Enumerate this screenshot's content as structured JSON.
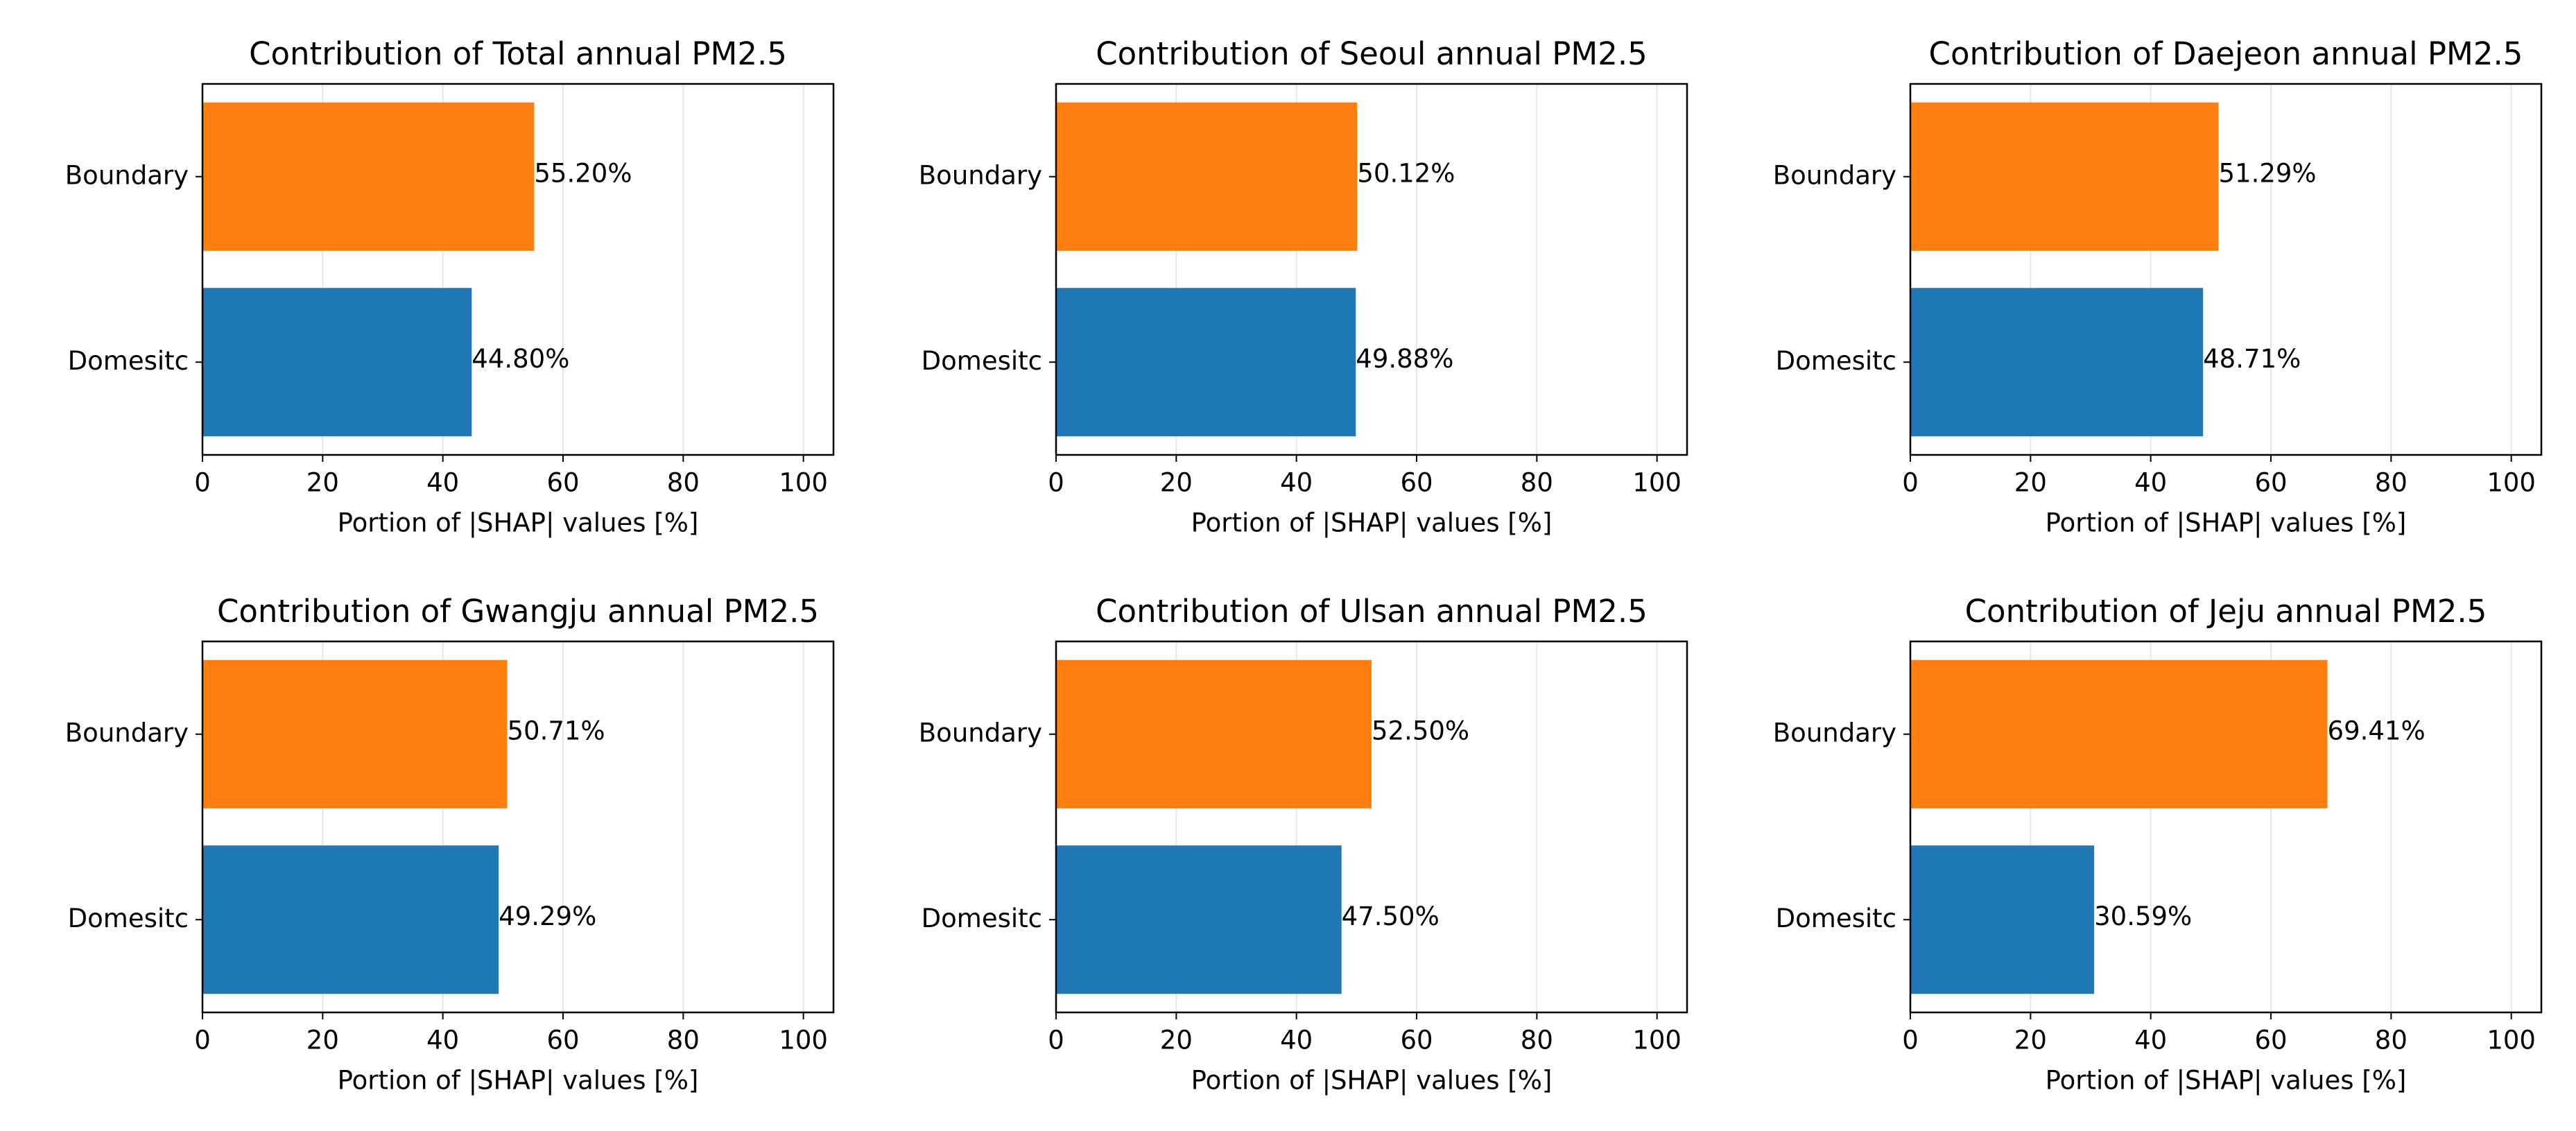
{
  "chart_data": [
    {
      "type": "barh",
      "title": "Contribution of Total annual PM2.5",
      "xlabel": "Portion of |SHAP| values [%]",
      "categories": [
        "Boundary",
        "Domesitc"
      ],
      "values": [
        55.2,
        44.8
      ],
      "value_labels": [
        "55.20%",
        "44.80%"
      ],
      "colors": [
        "#ff7f0e",
        "#1f77b4"
      ],
      "xlim": [
        0,
        105
      ],
      "xticks": [
        0,
        20,
        40,
        60,
        80,
        100
      ],
      "grid": true
    },
    {
      "type": "barh",
      "title": "Contribution of Seoul annual PM2.5",
      "xlabel": "Portion of |SHAP| values [%]",
      "categories": [
        "Boundary",
        "Domesitc"
      ],
      "values": [
        50.12,
        49.88
      ],
      "value_labels": [
        "50.12%",
        "49.88%"
      ],
      "colors": [
        "#ff7f0e",
        "#1f77b4"
      ],
      "xlim": [
        0,
        105
      ],
      "xticks": [
        0,
        20,
        40,
        60,
        80,
        100
      ],
      "grid": true
    },
    {
      "type": "barh",
      "title": "Contribution of Daejeon annual PM2.5",
      "xlabel": "Portion of |SHAP| values [%]",
      "categories": [
        "Boundary",
        "Domesitc"
      ],
      "values": [
        51.29,
        48.71
      ],
      "value_labels": [
        "51.29%",
        "48.71%"
      ],
      "colors": [
        "#ff7f0e",
        "#1f77b4"
      ],
      "xlim": [
        0,
        105
      ],
      "xticks": [
        0,
        20,
        40,
        60,
        80,
        100
      ],
      "grid": true
    },
    {
      "type": "barh",
      "title": "Contribution of Gwangju annual PM2.5",
      "xlabel": "Portion of |SHAP| values [%]",
      "categories": [
        "Boundary",
        "Domesitc"
      ],
      "values": [
        50.71,
        49.29
      ],
      "value_labels": [
        "50.71%",
        "49.29%"
      ],
      "colors": [
        "#ff7f0e",
        "#1f77b4"
      ],
      "xlim": [
        0,
        105
      ],
      "xticks": [
        0,
        20,
        40,
        60,
        80,
        100
      ],
      "grid": true
    },
    {
      "type": "barh",
      "title": "Contribution of Ulsan annual PM2.5",
      "xlabel": "Portion of |SHAP| values [%]",
      "categories": [
        "Boundary",
        "Domesitc"
      ],
      "values": [
        52.5,
        47.5
      ],
      "value_labels": [
        "52.50%",
        "47.50%"
      ],
      "colors": [
        "#ff7f0e",
        "#1f77b4"
      ],
      "xlim": [
        0,
        105
      ],
      "xticks": [
        0,
        20,
        40,
        60,
        80,
        100
      ],
      "grid": true
    },
    {
      "type": "barh",
      "title": "Contribution of Jeju annual PM2.5",
      "xlabel": "Portion of |SHAP| values [%]",
      "categories": [
        "Boundary",
        "Domesitc"
      ],
      "values": [
        69.41,
        30.59
      ],
      "value_labels": [
        "69.41%",
        "30.59%"
      ],
      "colors": [
        "#ff7f0e",
        "#1f77b4"
      ],
      "xlim": [
        0,
        105
      ],
      "xticks": [
        0,
        20,
        40,
        60,
        80,
        100
      ],
      "grid": true
    }
  ]
}
